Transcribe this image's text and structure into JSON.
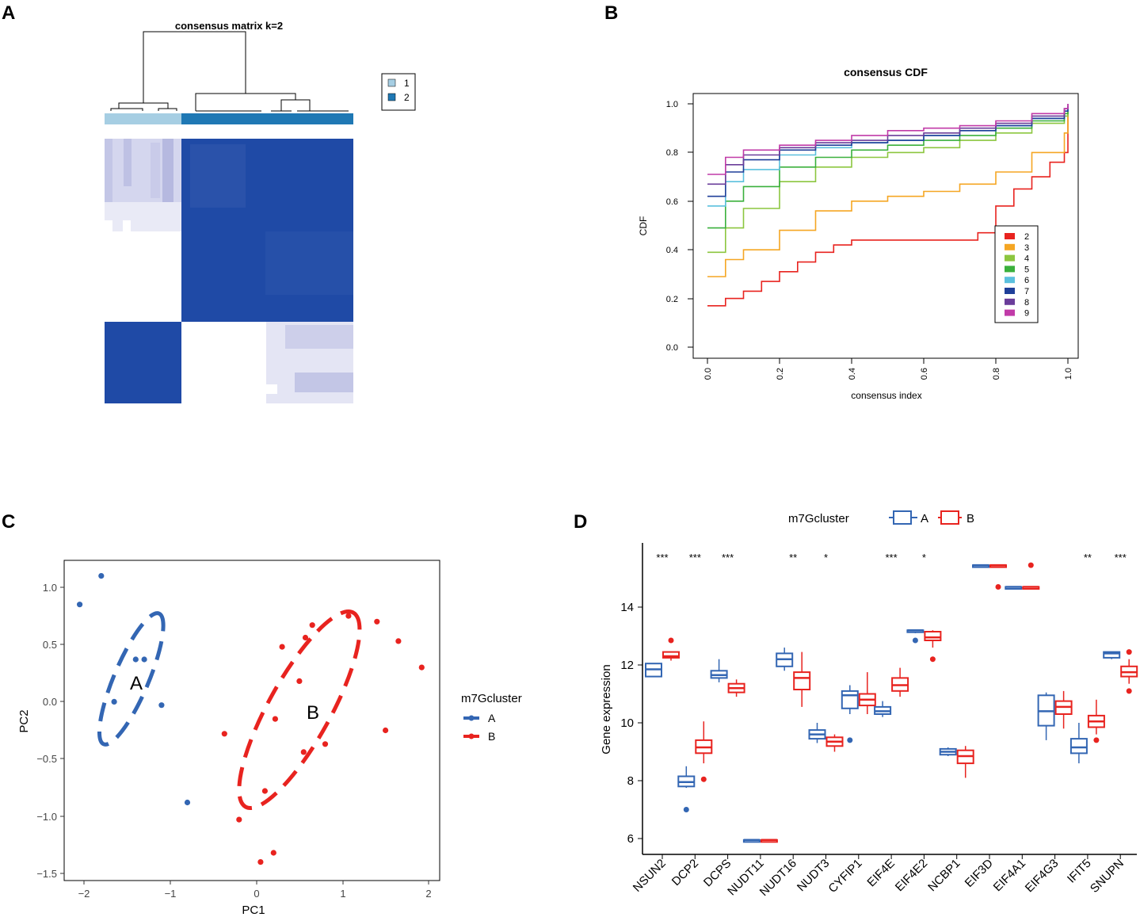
{
  "panels": {
    "A": {
      "label": "A",
      "title": "consensus matrix k=2",
      "legend": [
        {
          "label": "1",
          "color": "#a6cee3"
        },
        {
          "label": "2",
          "color": "#1f78b4"
        }
      ]
    },
    "B": {
      "label": "B",
      "title": "consensus CDF",
      "ylabel": "CDF",
      "xlabel": "consensus index",
      "xticks": [
        "0.0",
        "0.2",
        "0.4",
        "0.6",
        "0.8",
        "1.0"
      ],
      "yticks": [
        "0.0",
        "0.2",
        "0.4",
        "0.6",
        "0.8",
        "1.0"
      ]
    },
    "C": {
      "label": "C",
      "xlabel": "PC1",
      "ylabel": "PC2",
      "xticks": [
        "−2",
        "−1",
        "0",
        "1",
        "2"
      ],
      "yticks": [
        "1.0",
        "0.5",
        "0.0",
        "−0.5",
        "−1.0",
        "−1.5"
      ],
      "legend_title": "m7Gcluster",
      "legend_items": [
        "A",
        "B"
      ],
      "cluster_labels": [
        "A",
        "B"
      ]
    },
    "D": {
      "label": "D",
      "ylabel": "Gene expression",
      "yticks": [
        "6",
        "8",
        "10",
        "12",
        "14"
      ],
      "legend_title": "m7Gcluster",
      "legend_items": [
        "A",
        "B"
      ]
    }
  },
  "colors": {
    "cluster_A": "#3366b3",
    "cluster_B": "#e8231f",
    "heat_high": "#1f4aa6",
    "heat_mid": "#c3c6e6",
    "heat_low": "#e9eaf6"
  },
  "chart_data": [
    {
      "panel": "A",
      "type": "heatmap",
      "title": "consensus matrix k=2",
      "groups": [
        {
          "cluster": "1",
          "size": 3
        },
        {
          "cluster": "2",
          "size": 7
        }
      ],
      "matrix_blocks": [
        {
          "rows": "cluster 1",
          "cols": "cluster 1",
          "consensus": 0.25
        },
        {
          "rows": "cluster 1",
          "cols": "cluster 2",
          "consensus": 1.0
        },
        {
          "rows": "cluster 2 (upper)",
          "cols": "cluster 1",
          "consensus": 0.0
        },
        {
          "rows": "cluster 2 (upper)",
          "cols": "cluster 2",
          "consensus": 1.0
        },
        {
          "rows": "cluster 2 (lower)",
          "cols": "cluster 1",
          "consensus": 1.0
        },
        {
          "rows": "cluster 2 (lower)",
          "cols": "cluster 2",
          "consensus": 0.2
        }
      ]
    },
    {
      "panel": "B",
      "type": "line",
      "title": "consensus CDF",
      "xlabel": "consensus index",
      "ylabel": "CDF",
      "xlim": [
        0,
        1
      ],
      "ylim": [
        0,
        1
      ],
      "series": [
        {
          "name": "2",
          "color": "#e8231f",
          "x": [
            0,
            0.05,
            0.1,
            0.15,
            0.2,
            0.25,
            0.3,
            0.35,
            0.4,
            0.5,
            0.6,
            0.7,
            0.75,
            0.8,
            0.85,
            0.9,
            0.95,
            0.99,
            1.0
          ],
          "y": [
            0.17,
            0.2,
            0.23,
            0.27,
            0.31,
            0.35,
            0.39,
            0.42,
            0.44,
            0.44,
            0.44,
            0.44,
            0.47,
            0.58,
            0.65,
            0.7,
            0.76,
            0.8,
            0.97
          ]
        },
        {
          "name": "3",
          "color": "#f5a623",
          "x": [
            0,
            0.05,
            0.1,
            0.2,
            0.3,
            0.4,
            0.5,
            0.6,
            0.7,
            0.8,
            0.9,
            0.99,
            1.0
          ],
          "y": [
            0.29,
            0.36,
            0.4,
            0.48,
            0.56,
            0.6,
            0.62,
            0.64,
            0.67,
            0.72,
            0.8,
            0.88,
            0.96
          ]
        },
        {
          "name": "4",
          "color": "#8cc63f",
          "x": [
            0,
            0.05,
            0.1,
            0.2,
            0.3,
            0.4,
            0.5,
            0.6,
            0.7,
            0.8,
            0.9,
            0.99,
            1.0
          ],
          "y": [
            0.39,
            0.49,
            0.57,
            0.68,
            0.74,
            0.78,
            0.8,
            0.82,
            0.85,
            0.88,
            0.92,
            0.95,
            0.97
          ]
        },
        {
          "name": "5",
          "color": "#3ab03c",
          "x": [
            0,
            0.05,
            0.1,
            0.2,
            0.3,
            0.4,
            0.5,
            0.6,
            0.7,
            0.8,
            0.9,
            0.99,
            1.0
          ],
          "y": [
            0.49,
            0.6,
            0.66,
            0.74,
            0.78,
            0.81,
            0.83,
            0.85,
            0.87,
            0.9,
            0.93,
            0.96,
            0.98
          ]
        },
        {
          "name": "6",
          "color": "#5bc0de",
          "x": [
            0,
            0.05,
            0.1,
            0.2,
            0.3,
            0.4,
            0.5,
            0.6,
            0.7,
            0.8,
            0.9,
            0.99,
            1.0
          ],
          "y": [
            0.58,
            0.68,
            0.73,
            0.79,
            0.82,
            0.84,
            0.85,
            0.87,
            0.89,
            0.91,
            0.94,
            0.97,
            0.99
          ]
        },
        {
          "name": "7",
          "color": "#1f3f99",
          "x": [
            0,
            0.05,
            0.1,
            0.2,
            0.3,
            0.4,
            0.5,
            0.6,
            0.7,
            0.8,
            0.9,
            0.99,
            1.0
          ],
          "y": [
            0.62,
            0.72,
            0.77,
            0.81,
            0.83,
            0.84,
            0.85,
            0.87,
            0.89,
            0.91,
            0.94,
            0.97,
            0.99
          ]
        },
        {
          "name": "8",
          "color": "#6a3d9a",
          "x": [
            0,
            0.05,
            0.1,
            0.2,
            0.3,
            0.4,
            0.5,
            0.6,
            0.7,
            0.8,
            0.9,
            0.99,
            1.0
          ],
          "y": [
            0.67,
            0.75,
            0.79,
            0.82,
            0.84,
            0.85,
            0.87,
            0.88,
            0.9,
            0.92,
            0.95,
            0.98,
            1.0
          ]
        },
        {
          "name": "9",
          "color": "#c13ba8",
          "x": [
            0,
            0.05,
            0.1,
            0.2,
            0.3,
            0.4,
            0.5,
            0.6,
            0.7,
            0.8,
            0.9,
            0.99,
            1.0
          ],
          "y": [
            0.71,
            0.78,
            0.81,
            0.83,
            0.85,
            0.87,
            0.89,
            0.9,
            0.91,
            0.93,
            0.96,
            0.98,
            1.0
          ]
        }
      ]
    },
    {
      "panel": "C",
      "type": "scatter",
      "xlabel": "PC1",
      "ylabel": "PC2",
      "xlim": [
        -2.2,
        2.1
      ],
      "ylim": [
        -1.55,
        1.2
      ],
      "series": [
        {
          "name": "A",
          "color": "#3366b3",
          "points": [
            [
              -1.8,
              1.1
            ],
            [
              -2.05,
              0.85
            ],
            [
              -1.4,
              0.37
            ],
            [
              -1.3,
              0.37
            ],
            [
              -1.65,
              0.0
            ],
            [
              -1.1,
              -0.03
            ],
            [
              -0.8,
              -0.88
            ]
          ],
          "ellipse": {
            "cx": -1.45,
            "cy": 0.2,
            "rx": 0.62,
            "ry": 0.2,
            "angle_deg": -67
          }
        },
        {
          "name": "B",
          "color": "#e8231f",
          "points": [
            [
              0.65,
              0.67
            ],
            [
              1.07,
              0.75
            ],
            [
              1.4,
              0.7
            ],
            [
              0.57,
              0.56
            ],
            [
              0.3,
              0.48
            ],
            [
              1.65,
              0.53
            ],
            [
              1.92,
              0.3
            ],
            [
              0.5,
              0.18
            ],
            [
              0.22,
              -0.15
            ],
            [
              -0.37,
              -0.28
            ],
            [
              1.5,
              -0.25
            ],
            [
              0.8,
              -0.37
            ],
            [
              0.55,
              -0.44
            ],
            [
              0.1,
              -0.78
            ],
            [
              -0.2,
              -1.03
            ],
            [
              0.2,
              -1.32
            ],
            [
              0.05,
              -1.4
            ]
          ],
          "ellipse": {
            "cx": 0.5,
            "cy": -0.07,
            "rx": 0.97,
            "ry": 0.36,
            "angle_deg": -61
          }
        }
      ]
    },
    {
      "panel": "D",
      "type": "box",
      "ylabel": "Gene expression",
      "ylim": [
        5.7,
        15.9
      ],
      "categories": [
        "NSUN2",
        "DCP2",
        "DCPS",
        "NUDT11",
        "NUDT16",
        "NUDT3",
        "CYFIP1",
        "EIF4E",
        "EIF4E2",
        "NCBP1",
        "EIF3D",
        "EIF4A1",
        "EIF4G3",
        "IFIT5",
        "SNUPN"
      ],
      "significance": [
        "***",
        "***",
        "***",
        "",
        "**",
        "*",
        "",
        "***",
        "*",
        "",
        "",
        "",
        "",
        "**",
        "***"
      ],
      "series": [
        {
          "name": "A",
          "color": "#3366b3",
          "boxes": [
            [
              11.6,
              11.6,
              11.85,
              12.05,
              12.05
            ],
            [
              7.75,
              7.8,
              7.95,
              8.15,
              8.5
            ],
            [
              11.4,
              11.55,
              11.65,
              11.8,
              12.2
            ],
            [
              5.95,
              5.95,
              5.95,
              5.95,
              5.95
            ],
            [
              11.8,
              11.95,
              12.2,
              12.4,
              12.6
            ],
            [
              9.3,
              9.45,
              9.6,
              9.75,
              10.0
            ],
            [
              10.3,
              10.5,
              10.95,
              11.1,
              11.3
            ],
            [
              10.2,
              10.3,
              10.4,
              10.55,
              10.75
            ],
            [
              13.1,
              13.15,
              13.2,
              13.2,
              13.2
            ],
            [
              8.85,
              8.9,
              9.0,
              9.1,
              9.15
            ],
            [
              15.45,
              15.45,
              15.45,
              15.45,
              15.45
            ],
            [
              14.7,
              14.7,
              14.7,
              14.7,
              14.7
            ],
            [
              9.4,
              9.9,
              10.4,
              10.95,
              11.05
            ],
            [
              8.6,
              8.95,
              9.15,
              9.45,
              10.0
            ],
            [
              12.2,
              12.25,
              12.4,
              12.45,
              12.45
            ]
          ],
          "outliers": [
            [],
            [
              7.0
            ],
            [],
            [],
            [],
            [],
            [
              9.4
            ],
            [],
            [
              12.85
            ],
            [],
            [],
            [],
            [],
            [],
            []
          ]
        },
        {
          "name": "B",
          "color": "#e8231f",
          "boxes": [
            [
              12.15,
              12.25,
              12.3,
              12.45,
              12.45
            ],
            [
              8.6,
              8.95,
              9.15,
              9.4,
              10.05
            ],
            [
              10.9,
              11.05,
              11.2,
              11.35,
              11.5
            ],
            [
              5.95,
              5.95,
              5.95,
              5.95,
              5.95
            ],
            [
              10.55,
              11.15,
              11.55,
              11.75,
              12.45
            ],
            [
              9.0,
              9.2,
              9.35,
              9.5,
              9.6
            ],
            [
              10.3,
              10.6,
              10.8,
              11.0,
              11.75
            ],
            [
              10.9,
              11.1,
              11.3,
              11.55,
              11.9
            ],
            [
              12.6,
              12.85,
              12.95,
              13.15,
              13.2
            ],
            [
              8.1,
              8.6,
              8.85,
              9.05,
              9.2
            ],
            [
              15.45,
              15.45,
              15.45,
              15.45,
              15.45
            ],
            [
              14.7,
              14.7,
              14.7,
              14.7,
              14.7
            ],
            [
              9.8,
              10.3,
              10.55,
              10.75,
              11.1
            ],
            [
              9.6,
              9.85,
              10.05,
              10.25,
              10.8
            ],
            [
              11.35,
              11.6,
              11.75,
              11.95,
              12.2
            ]
          ],
          "outliers": [
            [
              12.85
            ],
            [
              8.05
            ],
            [],
            [],
            [],
            [],
            [],
            [],
            [
              12.2
            ],
            [],
            [
              14.7
            ],
            [
              15.45
            ],
            [],
            [
              9.4
            ],
            [
              11.1,
              12.45
            ]
          ]
        }
      ]
    }
  ]
}
